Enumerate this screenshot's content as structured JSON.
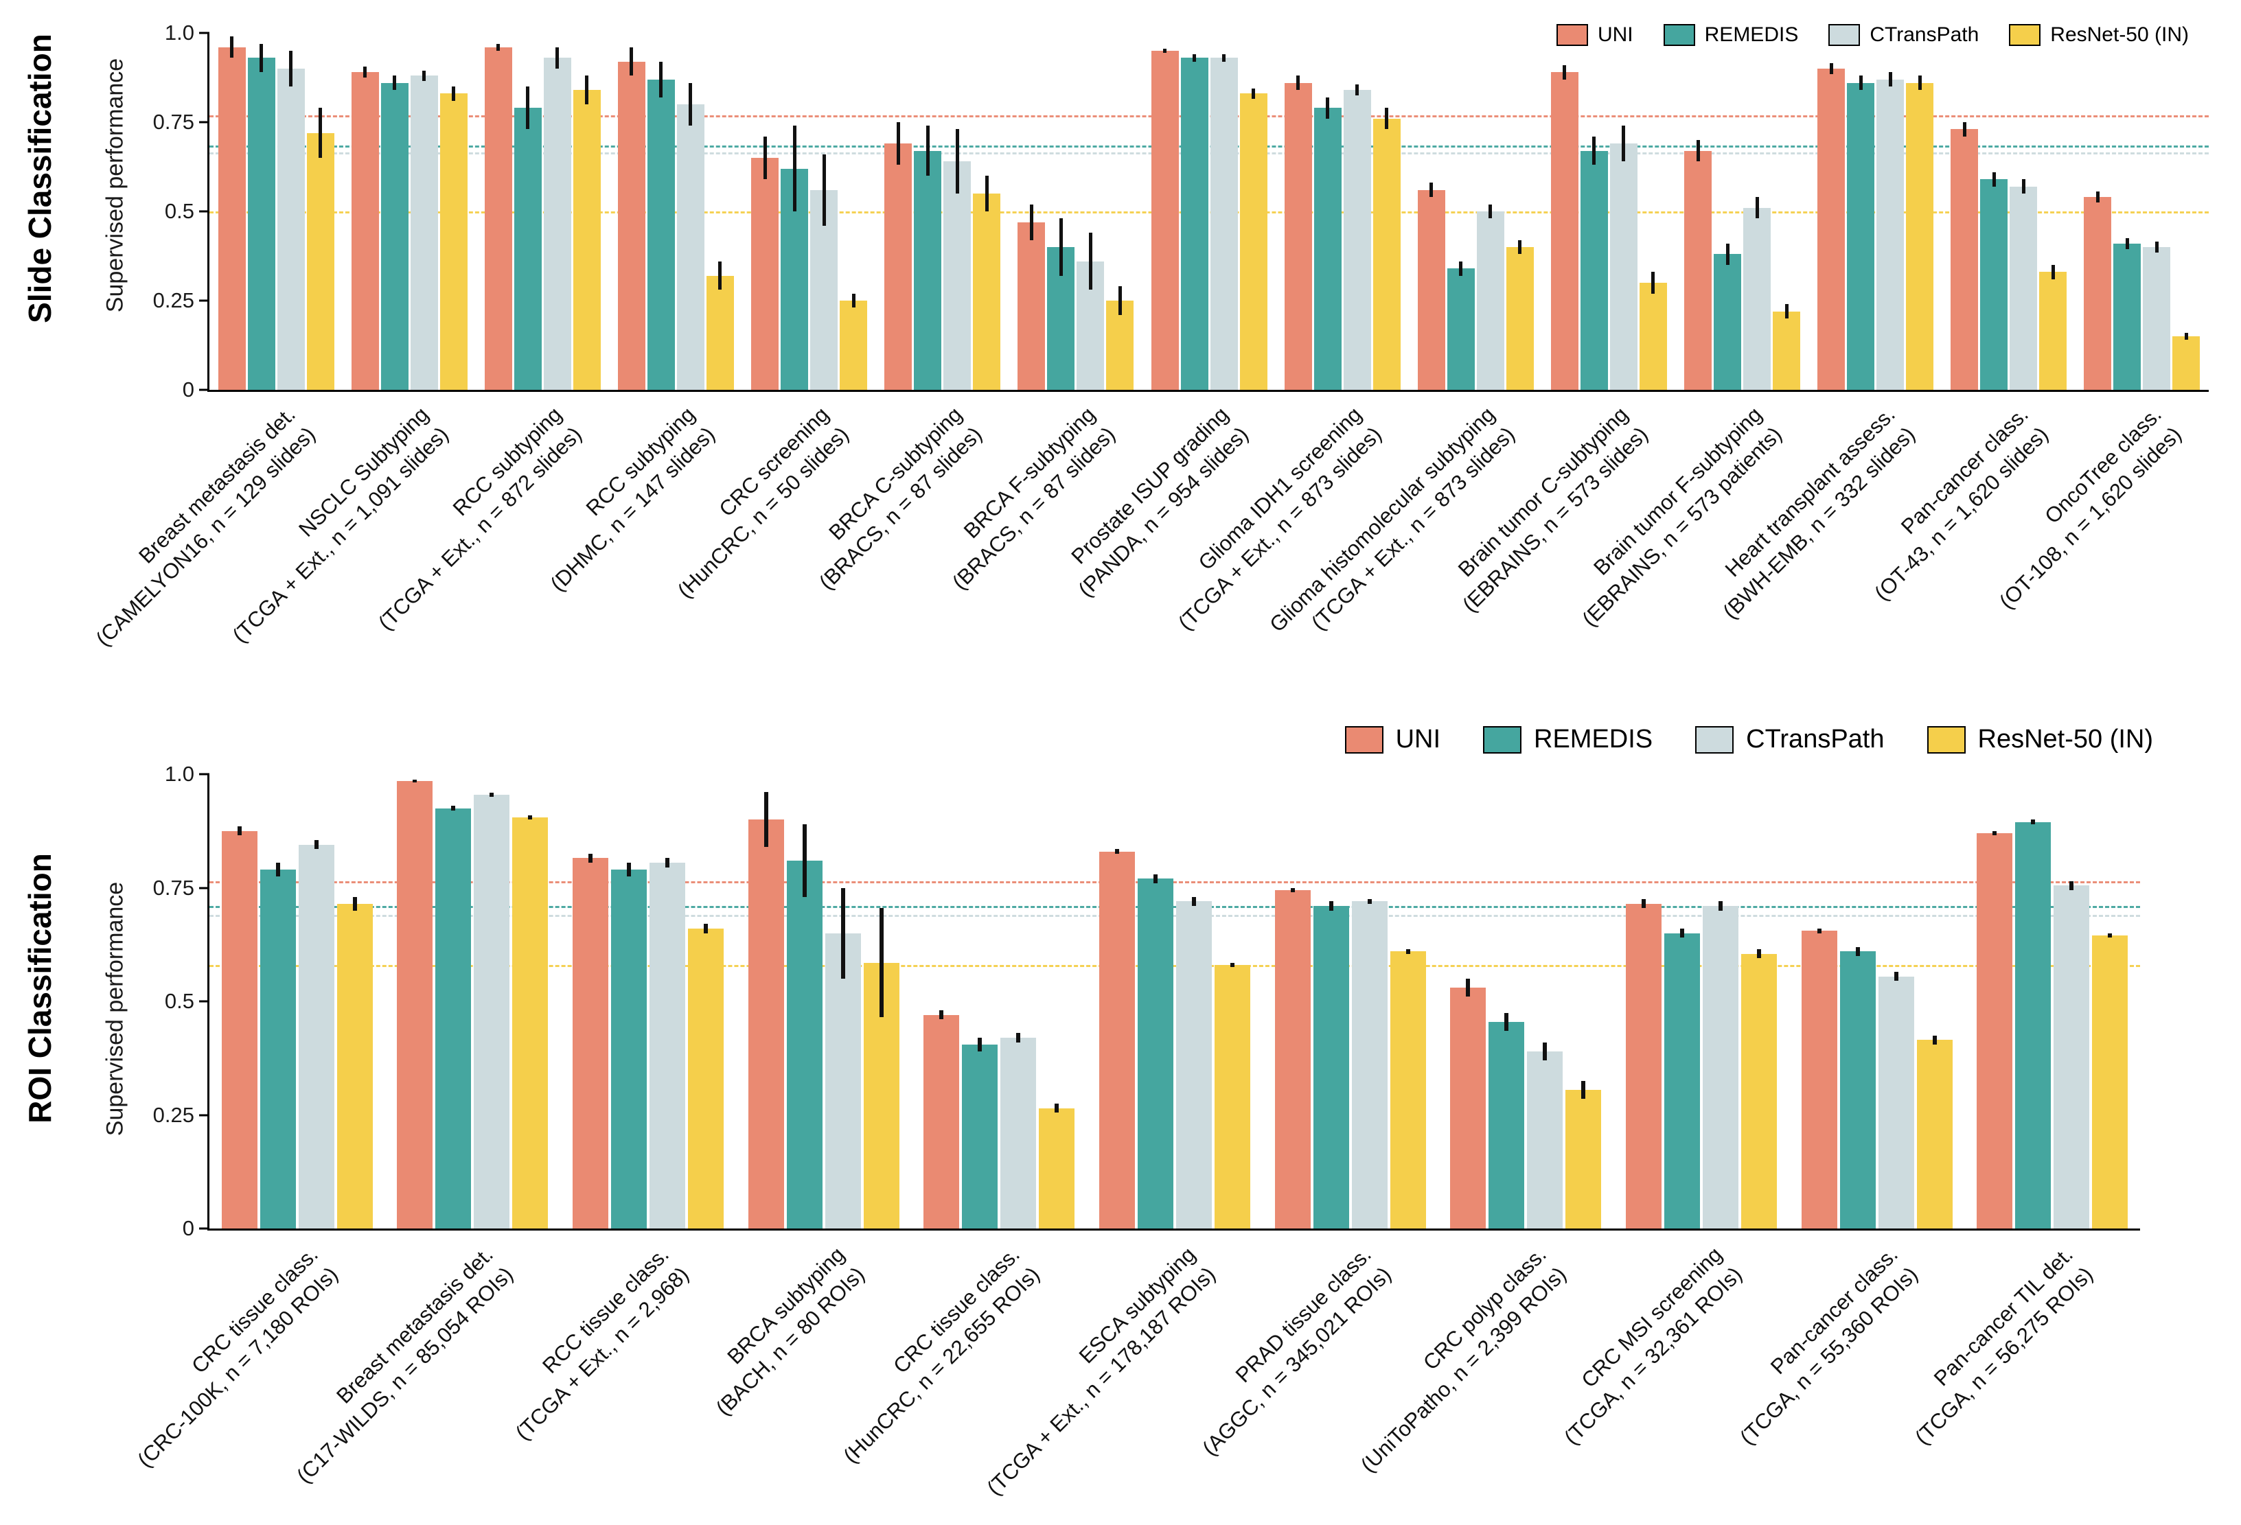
{
  "colors": {
    "UNI": "#EA8A72",
    "REMEDIS": "#45A69F",
    "CTransPath": "#CDDBDE",
    "ResNet-50 (IN)": "#F5CF4B"
  },
  "series_names": [
    "UNI",
    "REMEDIS",
    "CTransPath",
    "ResNet-50 (IN)"
  ],
  "chart_data": [
    {
      "type": "bar",
      "panel_title": "Slide Classification",
      "ylabel": "Supervised performance",
      "ylim": [
        0,
        1.0
      ],
      "yticks": [
        0,
        0.25,
        0.5,
        0.75,
        1.0
      ],
      "ytick_labels": [
        "0",
        "0.25",
        "0.5",
        "0.75",
        "1.0"
      ],
      "grid": false,
      "legend_position": "top-right",
      "error_bars": true,
      "baselines": [
        {
          "series": "UNI",
          "value": 0.77
        },
        {
          "series": "REMEDIS",
          "value": 0.685
        },
        {
          "series": "CTransPath",
          "value": 0.665
        },
        {
          "series": "ResNet-50 (IN)",
          "value": 0.5
        }
      ],
      "categories": [
        {
          "name": "Breast metastasis det.",
          "sub": "(CAMELYON16, n = 129 slides)"
        },
        {
          "name": "NSCLC Subtyping",
          "sub": "(TCGA + Ext., n = 1,091 slides)"
        },
        {
          "name": "RCC subtyping",
          "sub": "(TCGA + Ext., n = 872 slides)"
        },
        {
          "name": "RCC subtyping",
          "sub": "(DHMC, n = 147 slides)"
        },
        {
          "name": "CRC screening",
          "sub": "(HunCRC, n = 50 slides)"
        },
        {
          "name": "BRCA C-subtyping",
          "sub": "(BRACS, n = 87 slides)"
        },
        {
          "name": "BRCA F-subtyping",
          "sub": "(BRACS, n = 87 slides)"
        },
        {
          "name": "Prostate ISUP grading",
          "sub": "(PANDA, n = 954 slides)"
        },
        {
          "name": "Glioma IDH1 screening",
          "sub": "(TCGA + Ext., n = 873 slides)"
        },
        {
          "name": "Glioma histomolecular subtyping",
          "sub": "(TCGA + Ext., n = 873 slides)"
        },
        {
          "name": "Brain tumor C-subtyping",
          "sub": "(EBRAINS, n = 573 slides)"
        },
        {
          "name": "Brain tumor F-subtyping",
          "sub": "(EBRAINS, n = 573 patients)"
        },
        {
          "name": "Heart transplant assess.",
          "sub": "(BWH-EMB, n = 332 slides)"
        },
        {
          "name": "Pan-cancer class.",
          "sub": "(OT-43, n = 1,620 slides)"
        },
        {
          "name": "OncoTree class.",
          "sub": "(OT-108, n = 1,620 slides)"
        }
      ],
      "series": [
        {
          "name": "UNI",
          "values": [
            0.96,
            0.89,
            0.96,
            0.92,
            0.65,
            0.69,
            0.47,
            0.95,
            0.86,
            0.56,
            0.89,
            0.67,
            0.9,
            0.73,
            0.54
          ],
          "errors": [
            0.03,
            0.015,
            0.01,
            0.04,
            0.06,
            0.06,
            0.05,
            0.005,
            0.02,
            0.02,
            0.02,
            0.03,
            0.015,
            0.02,
            0.015
          ]
        },
        {
          "name": "REMEDIS",
          "values": [
            0.93,
            0.86,
            0.79,
            0.87,
            0.62,
            0.67,
            0.4,
            0.93,
            0.79,
            0.34,
            0.67,
            0.38,
            0.86,
            0.59,
            0.41
          ],
          "errors": [
            0.04,
            0.02,
            0.06,
            0.05,
            0.12,
            0.07,
            0.08,
            0.01,
            0.03,
            0.02,
            0.04,
            0.03,
            0.02,
            0.02,
            0.015
          ]
        },
        {
          "name": "CTransPath",
          "values": [
            0.9,
            0.88,
            0.93,
            0.8,
            0.56,
            0.64,
            0.36,
            0.93,
            0.84,
            0.5,
            0.69,
            0.51,
            0.87,
            0.57,
            0.4
          ],
          "errors": [
            0.05,
            0.015,
            0.03,
            0.06,
            0.1,
            0.09,
            0.08,
            0.01,
            0.015,
            0.02,
            0.05,
            0.03,
            0.02,
            0.02,
            0.015
          ]
        },
        {
          "name": "ResNet-50 (IN)",
          "values": [
            0.72,
            0.83,
            0.84,
            0.32,
            0.25,
            0.55,
            0.25,
            0.83,
            0.76,
            0.4,
            0.3,
            0.22,
            0.86,
            0.33,
            0.15
          ],
          "errors": [
            0.07,
            0.02,
            0.04,
            0.04,
            0.02,
            0.05,
            0.04,
            0.015,
            0.03,
            0.02,
            0.03,
            0.02,
            0.02,
            0.02,
            0.01
          ]
        }
      ]
    },
    {
      "type": "bar",
      "panel_title": "ROI Classification",
      "ylabel": "Supervised performance",
      "ylim": [
        0,
        1.0
      ],
      "yticks": [
        0,
        0.25,
        0.5,
        0.75,
        1.0
      ],
      "ytick_labels": [
        "0",
        "0.25",
        "0.5",
        "0.75",
        "1.0"
      ],
      "grid": false,
      "legend_position": "top-right",
      "error_bars": true,
      "baselines": [
        {
          "series": "UNI",
          "value": 0.765
        },
        {
          "series": "REMEDIS",
          "value": 0.71
        },
        {
          "series": "CTransPath",
          "value": 0.69
        },
        {
          "series": "ResNet-50 (IN)",
          "value": 0.58
        }
      ],
      "categories": [
        {
          "name": "CRC tissue class.",
          "sub": "(CRC-100K, n = 7,180 ROIs)"
        },
        {
          "name": "Breast metastasis det.",
          "sub": "(C17-WILDS, n = 85,054 ROIs)"
        },
        {
          "name": "RCC tissue class.",
          "sub": "(TCGA + Ext., n = 2,968)"
        },
        {
          "name": "BRCA subtyping",
          "sub": "(BACH, n = 80 ROIs)"
        },
        {
          "name": "CRC tissue class.",
          "sub": "(HunCRC, n = 22,655 ROIs)"
        },
        {
          "name": "ESCA subtyping",
          "sub": "(TCGA + Ext., n = 178,187 ROIs)"
        },
        {
          "name": "PRAD tissue class.",
          "sub": "(AGGC, n = 345,021 ROIs)"
        },
        {
          "name": "CRC polyp class.",
          "sub": "(UniToPatho, n = 2,399 ROIs)"
        },
        {
          "name": "CRC MSI screening",
          "sub": "(TCGA, n = 32,361 ROIs)"
        },
        {
          "name": "Pan-cancer class.",
          "sub": "(TCGA, n = 55,360 ROIs)"
        },
        {
          "name": "Pan-cancer TIL det.",
          "sub": "(TCGA, n = 56,275 ROIs)"
        }
      ],
      "series": [
        {
          "name": "UNI",
          "values": [
            0.875,
            0.985,
            0.815,
            0.9,
            0.47,
            0.83,
            0.745,
            0.53,
            0.715,
            0.655,
            0.87
          ],
          "errors": [
            0.01,
            0.003,
            0.01,
            0.06,
            0.01,
            0.005,
            0.005,
            0.02,
            0.01,
            0.005,
            0.005
          ]
        },
        {
          "name": "REMEDIS",
          "values": [
            0.79,
            0.925,
            0.79,
            0.81,
            0.405,
            0.77,
            0.71,
            0.455,
            0.65,
            0.61,
            0.895
          ],
          "errors": [
            0.015,
            0.005,
            0.015,
            0.08,
            0.015,
            0.01,
            0.01,
            0.02,
            0.01,
            0.01,
            0.005
          ]
        },
        {
          "name": "CTransPath",
          "values": [
            0.845,
            0.955,
            0.805,
            0.65,
            0.42,
            0.72,
            0.72,
            0.39,
            0.71,
            0.555,
            0.755
          ],
          "errors": [
            0.01,
            0.005,
            0.01,
            0.1,
            0.01,
            0.01,
            0.005,
            0.02,
            0.01,
            0.01,
            0.01
          ]
        },
        {
          "name": "ResNet-50 (IN)",
          "values": [
            0.715,
            0.905,
            0.66,
            0.585,
            0.265,
            0.58,
            0.61,
            0.305,
            0.605,
            0.415,
            0.645
          ],
          "errors": [
            0.015,
            0.005,
            0.01,
            0.12,
            0.01,
            0.005,
            0.005,
            0.02,
            0.01,
            0.01,
            0.005
          ]
        }
      ]
    }
  ]
}
